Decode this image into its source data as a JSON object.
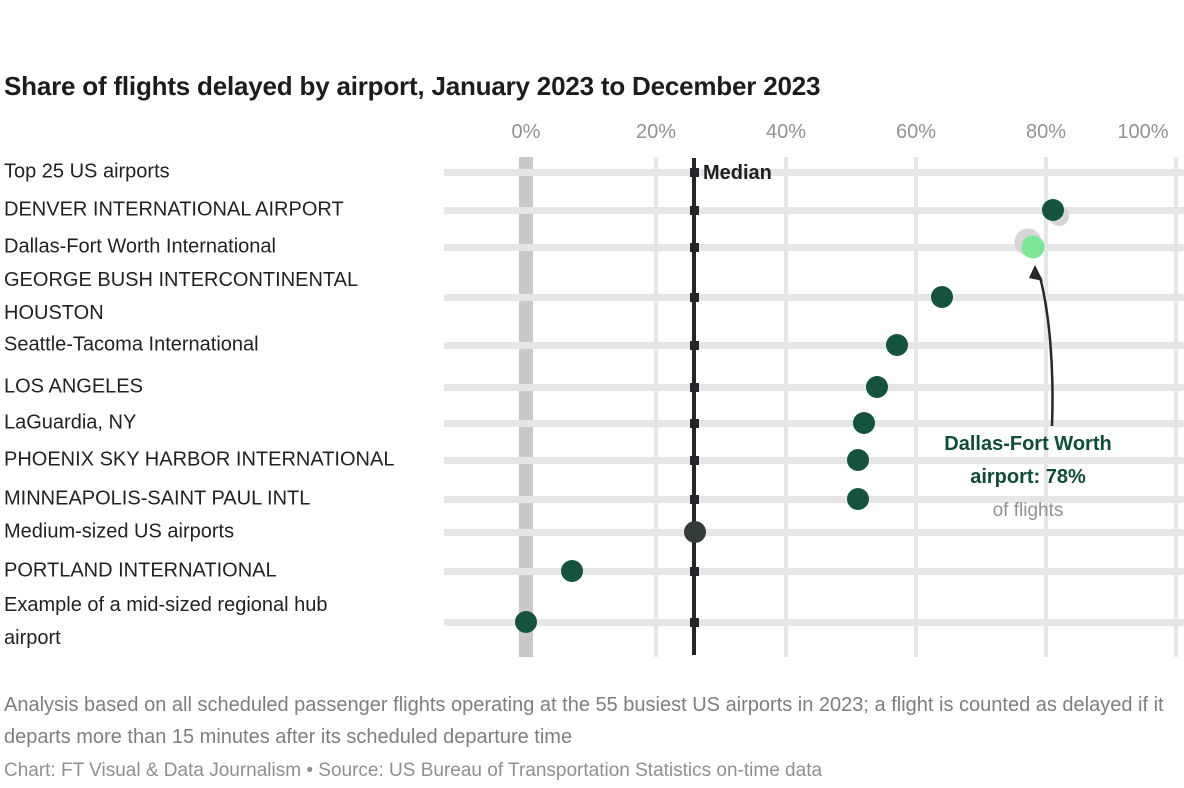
{
  "title": "Share of flights delayed by airport, January 2023 to December 2023",
  "x_axis": {
    "tick_labels": [
      "0%",
      "20%",
      "40%",
      "60%",
      "80%",
      "100%"
    ],
    "tick_values": [
      0,
      20,
      40,
      60,
      80,
      100
    ]
  },
  "median_line": {
    "label": "Median",
    "value": 26
  },
  "chart_data": {
    "type": "scatter",
    "unit": "%",
    "xlim": [
      0,
      100
    ],
    "grid": "on",
    "rows": [
      {
        "label": "Top 25 US airports",
        "kind": "group-header",
        "value": null,
        "dot": null
      },
      {
        "label": "DENVER INTERNATIONAL AIRPORT",
        "kind": "item",
        "value": 81,
        "dot": "dark-green"
      },
      {
        "label": "Dallas-Fort Worth International",
        "kind": "item",
        "value": 78,
        "dot": "light-green-highlight"
      },
      {
        "label": "GEORGE BUSH INTERCONTINENTAL\nHOUSTON",
        "kind": "item",
        "value": 64,
        "dot": "dark-green"
      },
      {
        "label": "Seattle-Tacoma International",
        "kind": "item",
        "value": 57,
        "dot": "dark-green"
      },
      {
        "label": "LOS ANGELES",
        "kind": "item",
        "value": 54,
        "dot": "dark-green"
      },
      {
        "label": "LaGuardia, NY",
        "kind": "item",
        "value": 52,
        "dot": "dark-green"
      },
      {
        "label": "PHOENIX SKY HARBOR INTERNATIONAL",
        "kind": "item",
        "value": 51,
        "dot": "dark-green"
      },
      {
        "label": "MINNEAPOLIS-SAINT PAUL INTL",
        "kind": "item",
        "value": 51,
        "dot": "dark-green"
      },
      {
        "label": "Medium-sized US airports",
        "kind": "group-header",
        "value": 26,
        "dot": "dark-gray"
      },
      {
        "label": "PORTLAND INTERNATIONAL",
        "kind": "item",
        "value": 7,
        "dot": "dark-green"
      },
      {
        "label": "Example of a mid-sized regional hub\nairport",
        "kind": "item",
        "value": 0,
        "dot": "dark-green"
      }
    ],
    "annotation": {
      "line1": "Dallas-Fort Worth",
      "line2": "airport: 78%",
      "note": "of flights",
      "points_to_value": 78
    }
  },
  "colors": {
    "dark_green_dot": "#14543c",
    "light_green_dot": "#7de798",
    "dark_gray_dot": "#333b38",
    "median_line": "#23272a",
    "gridline": "#e6e6e6",
    "zero_axis_bar": "#c9c9c9",
    "annotation_text": "#0d4d38"
  },
  "footnote": {
    "line1": "Analysis based on all scheduled passenger flights operating at the 55 busiest US airports in 2023; a flight is counted as delayed if it",
    "line2": "departs more than 15 minutes after its scheduled departure time",
    "credit": "Chart: FT Visual & Data Journalism  •  Source: US Bureau of Transportation Statistics on-time data"
  }
}
